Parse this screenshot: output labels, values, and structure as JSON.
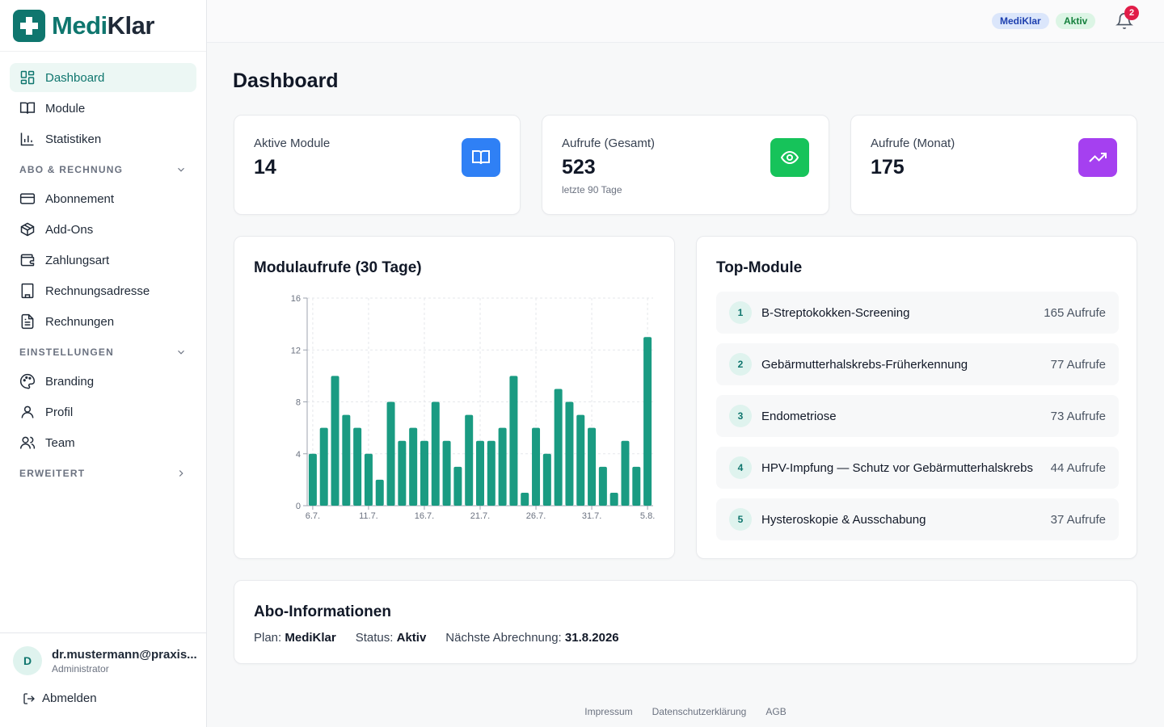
{
  "brand": {
    "name_part1": "Medi",
    "name_part2": "Klar"
  },
  "sidebar": {
    "items": [
      {
        "label": "Dashboard"
      },
      {
        "label": "Module"
      },
      {
        "label": "Statistiken"
      }
    ],
    "sections": [
      {
        "label": "ABO & RECHNUNG",
        "items": [
          {
            "label": "Abonnement"
          },
          {
            "label": "Add-Ons"
          },
          {
            "label": "Zahlungsart"
          },
          {
            "label": "Rechnungsadresse"
          },
          {
            "label": "Rechnungen"
          }
        ]
      },
      {
        "label": "EINSTELLUNGEN",
        "items": [
          {
            "label": "Branding"
          },
          {
            "label": "Profil"
          },
          {
            "label": "Team"
          }
        ]
      },
      {
        "label": "ERWEITERT",
        "items": []
      }
    ]
  },
  "user": {
    "initial": "D",
    "email": "dr.mustermann@praxis...",
    "role": "Administrator",
    "logout_label": "Abmelden"
  },
  "header": {
    "plan_badge": "MediKlar",
    "status_badge": "Aktiv",
    "notification_count": "2"
  },
  "page": {
    "title": "Dashboard"
  },
  "stats": [
    {
      "label": "Aktive Module",
      "value": "14",
      "sub": "",
      "icon": "book-icon",
      "color": "#2f80f5"
    },
    {
      "label": "Aufrufe (Gesamt)",
      "value": "523",
      "sub": "letzte 90 Tage",
      "icon": "eye-icon",
      "color": "#16c35a"
    },
    {
      "label": "Aufrufe (Monat)",
      "value": "175",
      "sub": "",
      "icon": "trending-up-icon",
      "color": "#a540f0"
    }
  ],
  "chart_card": {
    "title": "Modulaufrufe (30 Tage)"
  },
  "chart_data": {
    "type": "bar",
    "categories": [
      "6.7.",
      "7.7.",
      "8.7.",
      "9.7.",
      "10.7.",
      "11.7.",
      "12.7.",
      "13.7.",
      "14.7.",
      "15.7.",
      "16.7.",
      "17.7.",
      "18.7.",
      "19.7.",
      "20.7.",
      "21.7.",
      "22.7.",
      "23.7.",
      "24.7.",
      "25.7.",
      "26.7.",
      "27.7.",
      "28.7.",
      "29.7.",
      "30.7.",
      "31.7.",
      "1.8.",
      "2.8.",
      "3.8.",
      "4.8.",
      "5.8."
    ],
    "values": [
      4,
      6,
      10,
      7,
      6,
      4,
      2,
      8,
      5,
      6,
      5,
      8,
      5,
      3,
      7,
      5,
      5,
      6,
      10,
      1,
      6,
      4,
      9,
      8,
      7,
      6,
      3,
      1,
      5,
      3,
      13
    ],
    "x_tick_labels": [
      "6.7.",
      "11.7.",
      "16.7.",
      "21.7.",
      "26.7.",
      "31.7.",
      "5.8."
    ],
    "y_ticks": [
      0,
      4,
      8,
      12,
      16
    ],
    "ylim": [
      0,
      16
    ],
    "grid": true,
    "bar_color": "#1a9b82"
  },
  "top_modules": {
    "title": "Top-Module",
    "items": [
      {
        "rank": "1",
        "name": "B-Streptokokken-Screening",
        "count": "165 Aufrufe"
      },
      {
        "rank": "2",
        "name": "Gebärmutterhalskrebs-Früherkennung",
        "count": "77 Aufrufe"
      },
      {
        "rank": "3",
        "name": "Endometriose",
        "count": "73 Aufrufe"
      },
      {
        "rank": "4",
        "name": "HPV-Impfung — Schutz vor Gebärmutterhalskrebs",
        "count": "44 Aufrufe"
      },
      {
        "rank": "5",
        "name": "Hysteroskopie & Ausschabung",
        "count": "37 Aufrufe"
      }
    ]
  },
  "abo": {
    "title": "Abo-Informationen",
    "plan_label": "Plan:",
    "plan_value": "MediKlar",
    "status_label": "Status:",
    "status_value": "Aktiv",
    "billing_label": "Nächste Abrechnung:",
    "billing_value": "31.8.2026"
  },
  "footer": {
    "links": [
      "Impressum",
      "Datenschutzerklärung",
      "AGB"
    ]
  }
}
